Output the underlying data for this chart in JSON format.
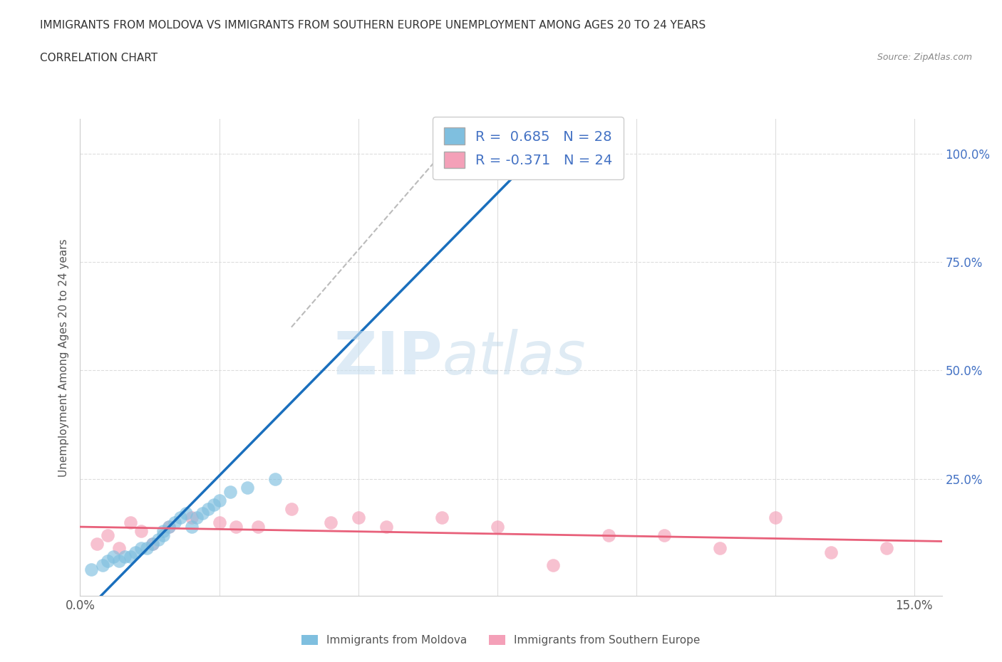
{
  "title_line1": "IMMIGRANTS FROM MOLDOVA VS IMMIGRANTS FROM SOUTHERN EUROPE UNEMPLOYMENT AMONG AGES 20 TO 24 YEARS",
  "title_line2": "CORRELATION CHART",
  "source": "Source: ZipAtlas.com",
  "ylabel": "Unemployment Among Ages 20 to 24 years",
  "xlim": [
    0.0,
    0.155
  ],
  "ylim": [
    -0.02,
    1.08
  ],
  "ytick_positions": [
    0.0,
    0.25,
    0.5,
    0.75,
    1.0
  ],
  "ytick_labels_right": [
    "",
    "25.0%",
    "50.0%",
    "75.0%",
    "100.0%"
  ],
  "color_moldova": "#7fbfdf",
  "color_southern": "#f4a0b8",
  "color_line_moldova": "#1a6fbd",
  "color_line_southern": "#e8607a",
  "watermark_zip": "ZIP",
  "watermark_atlas": "atlas",
  "moldova_x": [
    0.002,
    0.004,
    0.005,
    0.006,
    0.007,
    0.008,
    0.009,
    0.01,
    0.011,
    0.012,
    0.013,
    0.014,
    0.015,
    0.015,
    0.016,
    0.017,
    0.018,
    0.019,
    0.02,
    0.021,
    0.022,
    0.023,
    0.024,
    0.025,
    0.027,
    0.03,
    0.035,
    0.065
  ],
  "moldova_y": [
    0.04,
    0.05,
    0.06,
    0.07,
    0.06,
    0.07,
    0.07,
    0.08,
    0.09,
    0.09,
    0.1,
    0.11,
    0.12,
    0.13,
    0.14,
    0.15,
    0.16,
    0.17,
    0.14,
    0.16,
    0.17,
    0.18,
    0.19,
    0.2,
    0.22,
    0.23,
    0.25,
    1.0
  ],
  "southern_x": [
    0.003,
    0.005,
    0.007,
    0.009,
    0.011,
    0.013,
    0.016,
    0.02,
    0.025,
    0.028,
    0.032,
    0.038,
    0.045,
    0.05,
    0.055,
    0.065,
    0.075,
    0.085,
    0.095,
    0.105,
    0.115,
    0.125,
    0.135,
    0.145
  ],
  "southern_y": [
    0.1,
    0.12,
    0.09,
    0.15,
    0.13,
    0.1,
    0.14,
    0.16,
    0.15,
    0.14,
    0.14,
    0.18,
    0.15,
    0.16,
    0.14,
    0.16,
    0.14,
    0.05,
    0.12,
    0.12,
    0.09,
    0.16,
    0.08,
    0.09
  ],
  "background_color": "#ffffff",
  "grid_color": "#dddddd",
  "dash_line_x": [
    0.038,
    0.065
  ],
  "dash_line_y": [
    0.6,
    1.0
  ]
}
